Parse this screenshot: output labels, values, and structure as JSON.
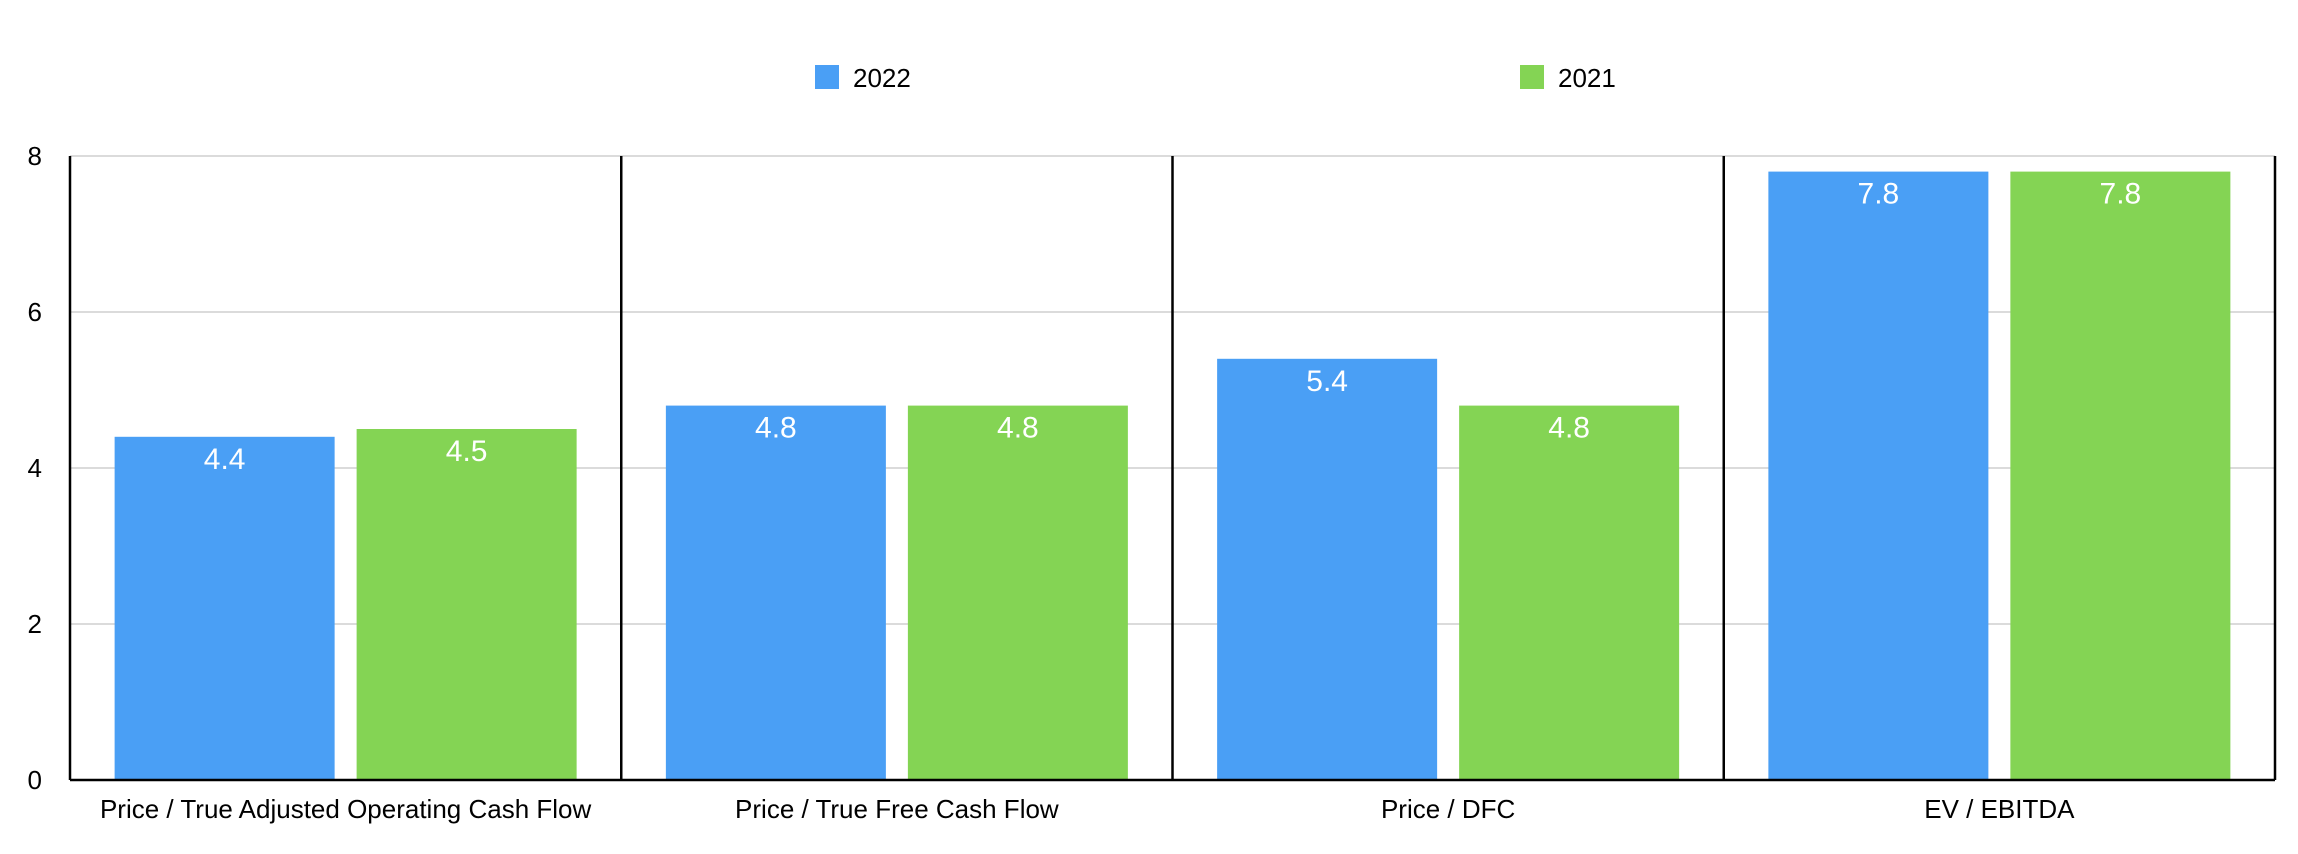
{
  "chart_data": {
    "type": "bar",
    "categories": [
      "Price / True Adjusted Operating Cash Flow",
      "Price / True Free Cash Flow",
      "Price / DFC",
      "EV / EBITDA"
    ],
    "series": [
      {
        "name": "2022",
        "color": "#4a9ff5",
        "values": [
          4.4,
          4.8,
          5.4,
          7.8
        ]
      },
      {
        "name": "2021",
        "color": "#84d454",
        "values": [
          4.5,
          4.8,
          4.8,
          7.8
        ]
      }
    ],
    "y_ticks": [
      "0",
      "2",
      "4",
      "6",
      "8"
    ],
    "data_labels": [
      [
        "4.4",
        "4.8",
        "5.4",
        "7.8"
      ],
      [
        "4.5",
        "4.8",
        "4.8",
        "7.8"
      ]
    ],
    "ylim": [
      0,
      8
    ],
    "grid": true,
    "legend_position": "top"
  }
}
